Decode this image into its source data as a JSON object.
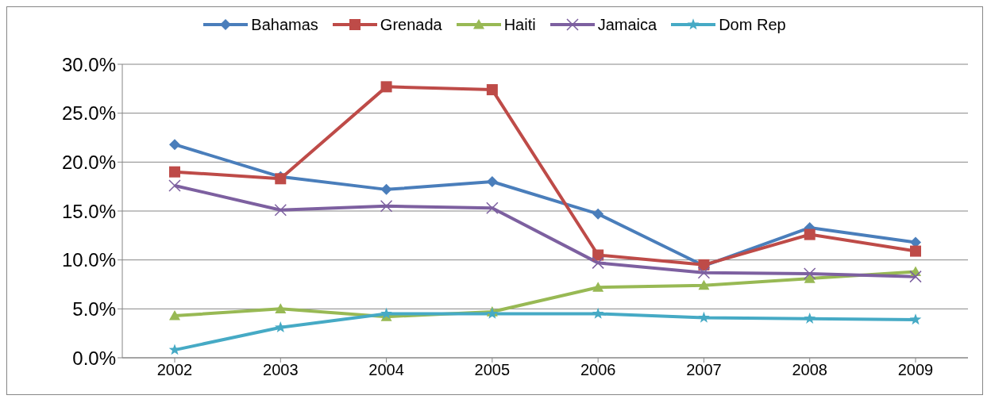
{
  "chart_data": {
    "type": "line",
    "categories": [
      "2002",
      "2003",
      "2004",
      "2005",
      "2006",
      "2007",
      "2008",
      "2009"
    ],
    "series": [
      {
        "name": "Bahamas",
        "color": "#4a7ebb",
        "marker": "diamond",
        "values": [
          21.8,
          18.5,
          17.2,
          18.0,
          14.7,
          9.4,
          13.3,
          11.8
        ]
      },
      {
        "name": "Grenada",
        "color": "#be4b48",
        "marker": "square",
        "values": [
          19.0,
          18.3,
          27.7,
          27.4,
          10.5,
          9.5,
          12.6,
          10.9
        ]
      },
      {
        "name": "Haiti",
        "color": "#98b954",
        "marker": "triangle",
        "values": [
          4.3,
          5.0,
          4.2,
          4.7,
          7.2,
          7.4,
          8.1,
          8.8
        ]
      },
      {
        "name": "Jamaica",
        "color": "#7d60a0",
        "marker": "cross",
        "values": [
          17.6,
          15.1,
          15.5,
          15.3,
          9.7,
          8.7,
          8.6,
          8.3
        ]
      },
      {
        "name": "Dom Rep",
        "color": "#46aac5",
        "marker": "star",
        "values": [
          0.8,
          3.1,
          4.5,
          4.5,
          4.5,
          4.1,
          4.0,
          3.9
        ]
      }
    ],
    "ylim": [
      0,
      30
    ],
    "yticks": [
      {
        "value": 0,
        "label": "0.0%"
      },
      {
        "value": 5,
        "label": "5.0%"
      },
      {
        "value": 10,
        "label": "10.0%"
      },
      {
        "value": 15,
        "label": "15.0%"
      },
      {
        "value": 20,
        "label": "20.0%"
      },
      {
        "value": 25,
        "label": "25.0%"
      },
      {
        "value": 30,
        "label": "30.0%"
      }
    ],
    "grid": "y",
    "legend": "top",
    "line_style": "solid"
  }
}
